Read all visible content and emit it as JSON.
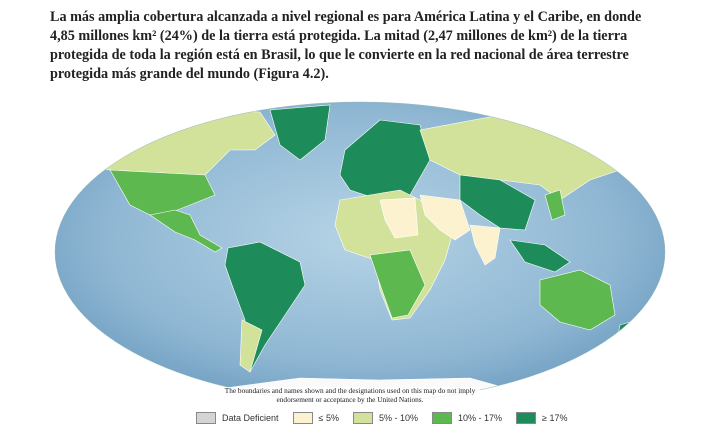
{
  "document": {
    "paragraph": "La más amplia cobertura alcanzada a nivel regional es para América Latina y el Caribe, en donde 4,85 millones km² (24%) de la tierra está protegida. La mitad (2,47 millones de km²) de la tierra protegida de toda la región está en Brasil, lo que le convierte en la red nacional de área terrestre protegida más grande del mundo (Figura 4.2).",
    "map": {
      "disclaimer": "The boundaries and names shown and the designations used on this map do not imply endorsement or acceptance by the United Nations.",
      "legend": [
        {
          "label": "Data Deficient",
          "color": "#d4d4d4"
        },
        {
          "label": "≤ 5%",
          "color": "#fcf2cf"
        },
        {
          "label": "5% - 10%",
          "color": "#d2e29a"
        },
        {
          "label": "10% - 17%",
          "color": "#5cb84f"
        },
        {
          "label": "≥ 17%",
          "color": "#1e8b5b"
        }
      ]
    }
  }
}
